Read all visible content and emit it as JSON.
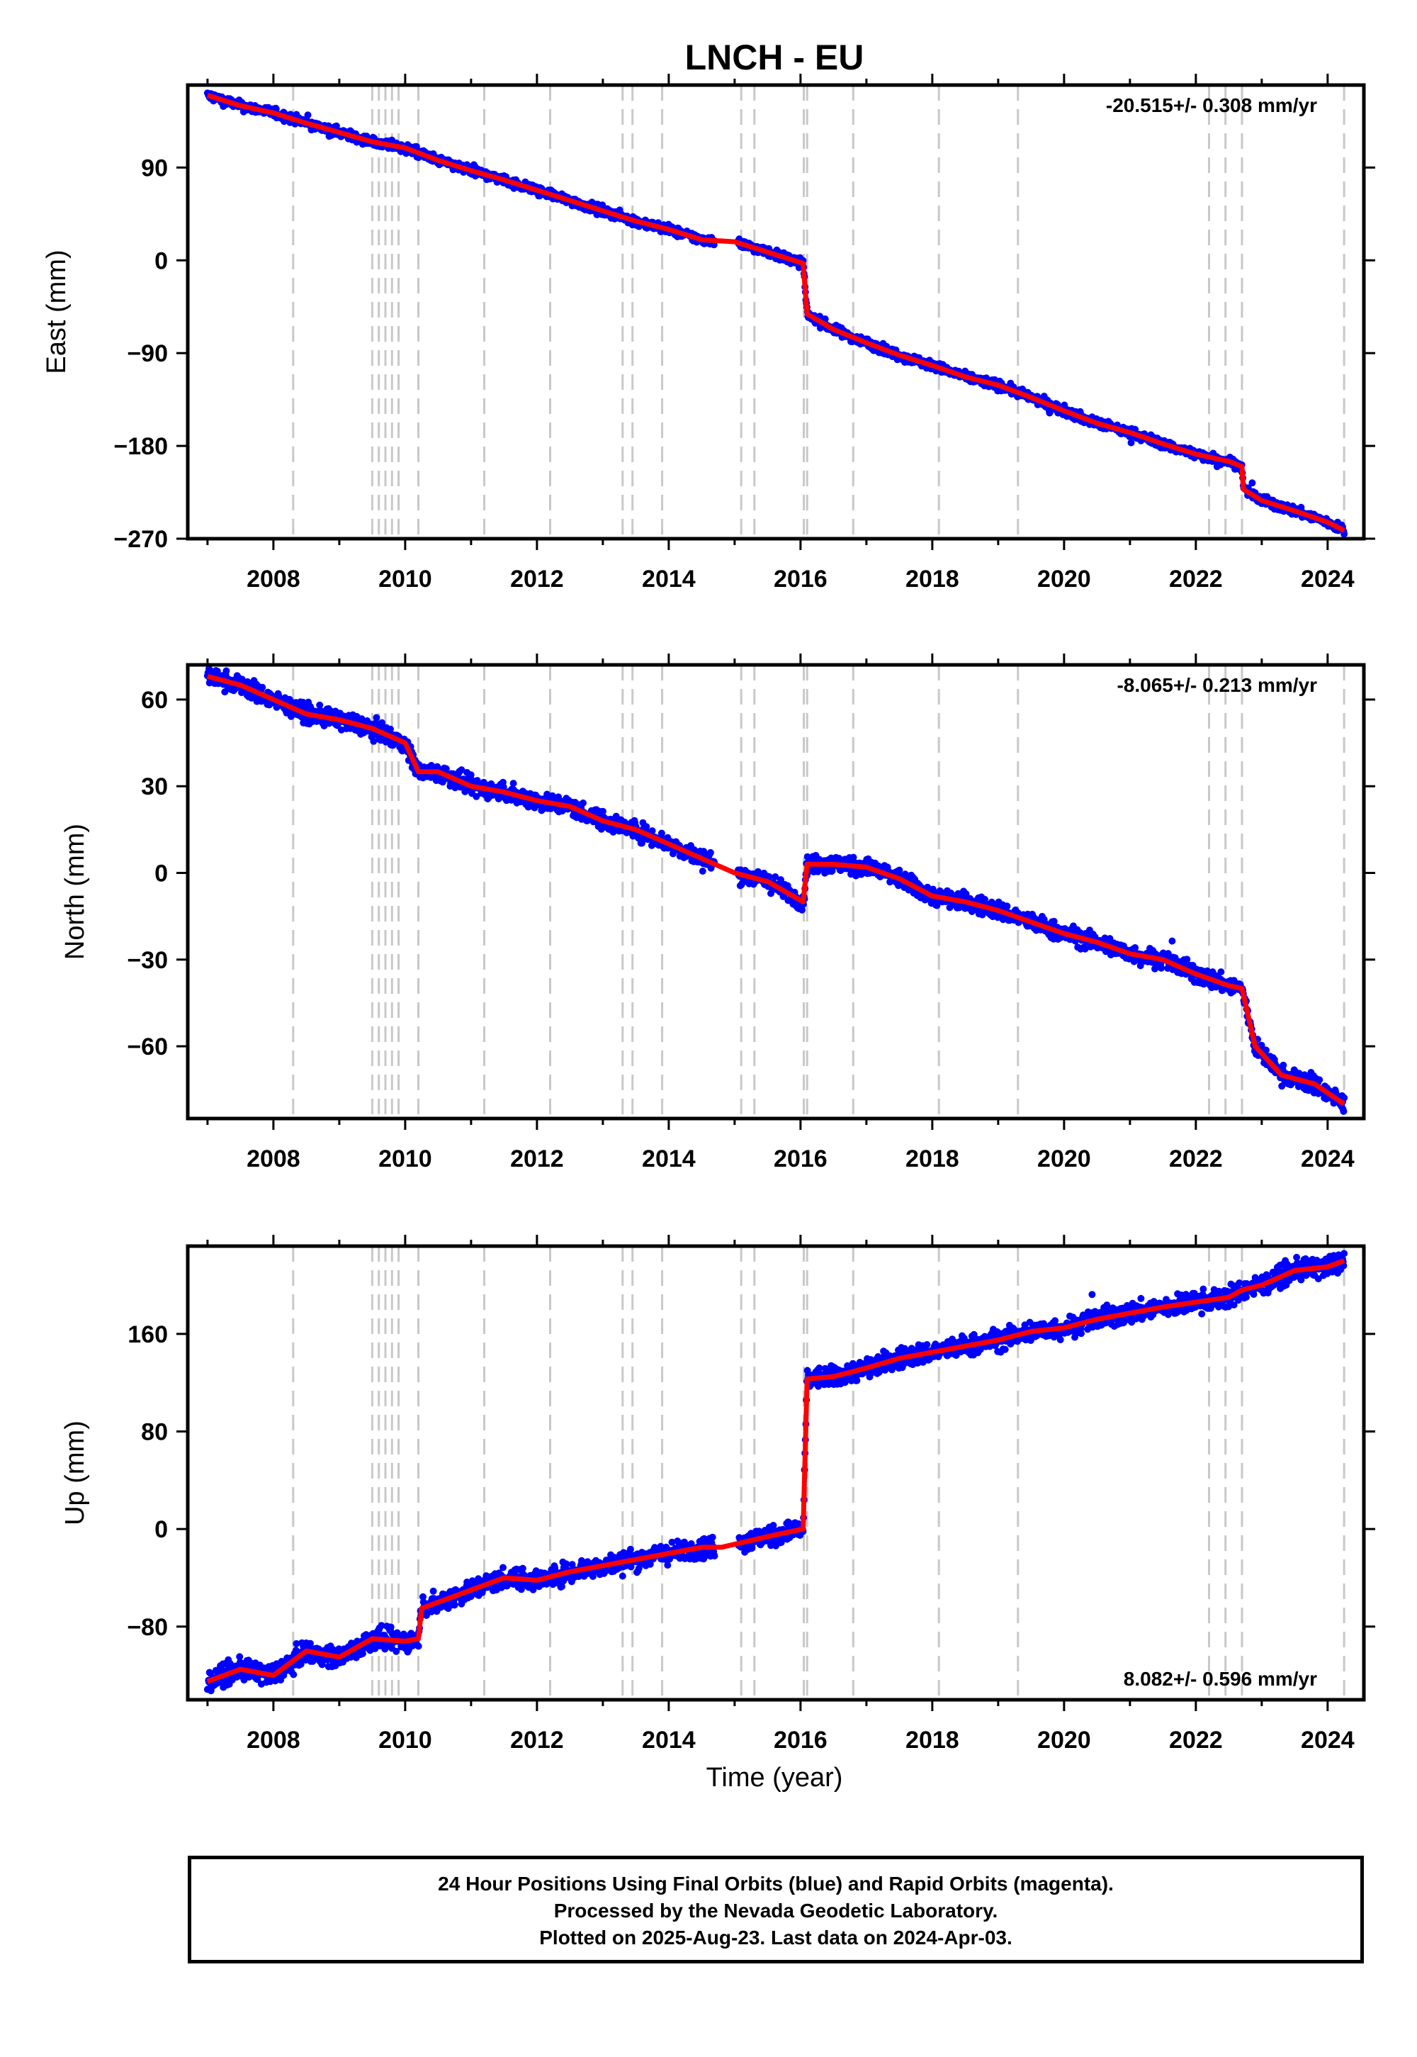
{
  "title": "LNCH - EU",
  "xlabel": "Time (year)",
  "x_ticks": [
    "2008",
    "2010",
    "2012",
    "2014",
    "2016",
    "2018",
    "2020",
    "2022",
    "2024"
  ],
  "footer": {
    "line1": "24 Hour Positions Using Final Orbits (blue) and Rapid Orbits (magenta).",
    "line2": "Processed by the Nevada Geodetic Laboratory.",
    "line3": "Plotted on 2025-Aug-23. Last data on 2024-Apr-03."
  },
  "colors": {
    "final_orbits": "#0000ff",
    "model": "#ff0000",
    "event_lines": "#c8c8c8"
  },
  "chart_data": [
    {
      "type": "scatter",
      "ylabel": "East (mm)",
      "rate_label": "-20.515+/- 0.308 mm/yr",
      "xlim": [
        2006.7,
        2024.55
      ],
      "ylim": [
        -270,
        170
      ],
      "yticks": [
        90,
        0,
        -90,
        -180,
        -270
      ],
      "ytick_labels": [
        "90",
        "0",
        "−90",
        "−180",
        "−270"
      ],
      "event_lines": [
        2008.3,
        2009.5,
        2009.6,
        2009.7,
        2009.8,
        2009.9,
        2010.2,
        2011.2,
        2012.2,
        2013.3,
        2013.45,
        2013.9,
        2015.1,
        2015.3,
        2016.05,
        2016.1,
        2016.8,
        2018.1,
        2019.3,
        2022.2,
        2022.45,
        2022.7,
        2024.25
      ],
      "series": [
        {
          "name": "Final Orbits",
          "x": [
            2007.0,
            2007.5,
            2008.0,
            2008.5,
            2009.0,
            2009.5,
            2010.0,
            2010.5,
            2011.0,
            2011.5,
            2012.0,
            2012.5,
            2013.0,
            2013.5,
            2014.0,
            2014.5,
            2015.0,
            2015.5,
            2016.04,
            2016.1,
            2016.5,
            2017.0,
            2017.5,
            2018.0,
            2018.5,
            2019.0,
            2019.5,
            2020.0,
            2020.5,
            2021.0,
            2021.5,
            2022.0,
            2022.5,
            2022.7,
            2022.72,
            2023.0,
            2023.5,
            2024.0,
            2024.25
          ],
          "y": [
            160,
            150,
            143,
            133,
            124,
            115,
            109,
            97,
            87,
            78,
            68,
            58,
            48,
            38,
            30,
            20,
            18,
            8,
            -3,
            -52,
            -67,
            -80,
            -92,
            -102,
            -113,
            -121,
            -133,
            -146,
            -158,
            -167,
            -178,
            -188,
            -195,
            -200,
            -222,
            -233,
            -243,
            -254,
            -262
          ]
        }
      ]
    },
    {
      "type": "scatter",
      "ylabel": "North (mm)",
      "rate_label": "-8.065+/- 0.213 mm/yr",
      "xlim": [
        2006.7,
        2024.55
      ],
      "ylim": [
        -85,
        72
      ],
      "yticks": [
        60,
        30,
        0,
        -30,
        -60
      ],
      "ytick_labels": [
        "60",
        "30",
        "0",
        "−30",
        "−60"
      ],
      "event_lines": [
        2008.3,
        2009.5,
        2009.6,
        2009.7,
        2009.8,
        2009.9,
        2010.2,
        2011.2,
        2012.2,
        2013.3,
        2013.45,
        2013.9,
        2015.1,
        2015.3,
        2016.05,
        2016.1,
        2016.8,
        2018.1,
        2019.3,
        2022.2,
        2022.45,
        2022.7,
        2024.25
      ],
      "series": [
        {
          "name": "Final Orbits",
          "x": [
            2007.0,
            2007.5,
            2008.0,
            2008.5,
            2009.0,
            2009.5,
            2010.0,
            2010.2,
            2010.5,
            2011.0,
            2011.5,
            2012.0,
            2012.5,
            2013.0,
            2013.5,
            2014.0,
            2014.5,
            2015.0,
            2015.5,
            2016.04,
            2016.1,
            2016.5,
            2017.0,
            2017.5,
            2018.0,
            2018.5,
            2019.0,
            2019.5,
            2020.0,
            2020.5,
            2021.0,
            2021.5,
            2022.0,
            2022.5,
            2022.7,
            2022.9,
            2023.3,
            2023.8,
            2024.25
          ],
          "y": [
            68,
            65,
            60,
            55,
            53,
            50,
            45,
            35,
            35,
            30,
            28,
            25,
            23,
            18,
            15,
            10,
            5,
            0,
            -3,
            -10,
            3,
            3,
            2,
            -2,
            -8,
            -10,
            -13,
            -17,
            -21,
            -24,
            -28,
            -30,
            -35,
            -39,
            -40,
            -60,
            -70,
            -73,
            -80
          ]
        }
      ]
    },
    {
      "type": "scatter",
      "ylabel": "Up (mm)",
      "rate_label": "8.082+/- 0.596 mm/yr",
      "xlim": [
        2006.7,
        2024.55
      ],
      "ylim": [
        -140,
        232
      ],
      "yticks": [
        160,
        80,
        0,
        -80
      ],
      "ytick_labels": [
        "160",
        "80",
        "0",
        "−80"
      ],
      "event_lines": [
        2008.3,
        2009.5,
        2009.6,
        2009.7,
        2009.8,
        2009.9,
        2010.2,
        2011.2,
        2012.2,
        2013.3,
        2013.45,
        2013.9,
        2015.1,
        2015.3,
        2016.05,
        2016.1,
        2016.8,
        2018.1,
        2019.3,
        2022.2,
        2022.45,
        2022.7,
        2024.25
      ],
      "series": [
        {
          "name": "Final Orbits",
          "x": [
            2007.0,
            2007.5,
            2008.0,
            2008.5,
            2009.0,
            2009.5,
            2010.0,
            2010.2,
            2010.25,
            2010.5,
            2011.0,
            2011.5,
            2012.0,
            2012.5,
            2013.0,
            2013.5,
            2014.0,
            2014.5,
            2014.8,
            2015.2,
            2015.6,
            2016.04,
            2016.1,
            2016.5,
            2017.0,
            2017.5,
            2018.0,
            2018.5,
            2019.0,
            2019.5,
            2020.0,
            2020.5,
            2021.0,
            2021.5,
            2022.0,
            2022.5,
            2022.7,
            2023.0,
            2023.5,
            2024.0,
            2024.25
          ],
          "y": [
            -125,
            -115,
            -120,
            -100,
            -105,
            -90,
            -92,
            -90,
            -65,
            -60,
            -50,
            -40,
            -42,
            -35,
            -30,
            -25,
            -20,
            -15,
            -15,
            -10,
            -5,
            0,
            123,
            125,
            132,
            140,
            145,
            150,
            155,
            162,
            165,
            172,
            177,
            182,
            186,
            190,
            196,
            200,
            212,
            215,
            220
          ]
        }
      ]
    }
  ]
}
